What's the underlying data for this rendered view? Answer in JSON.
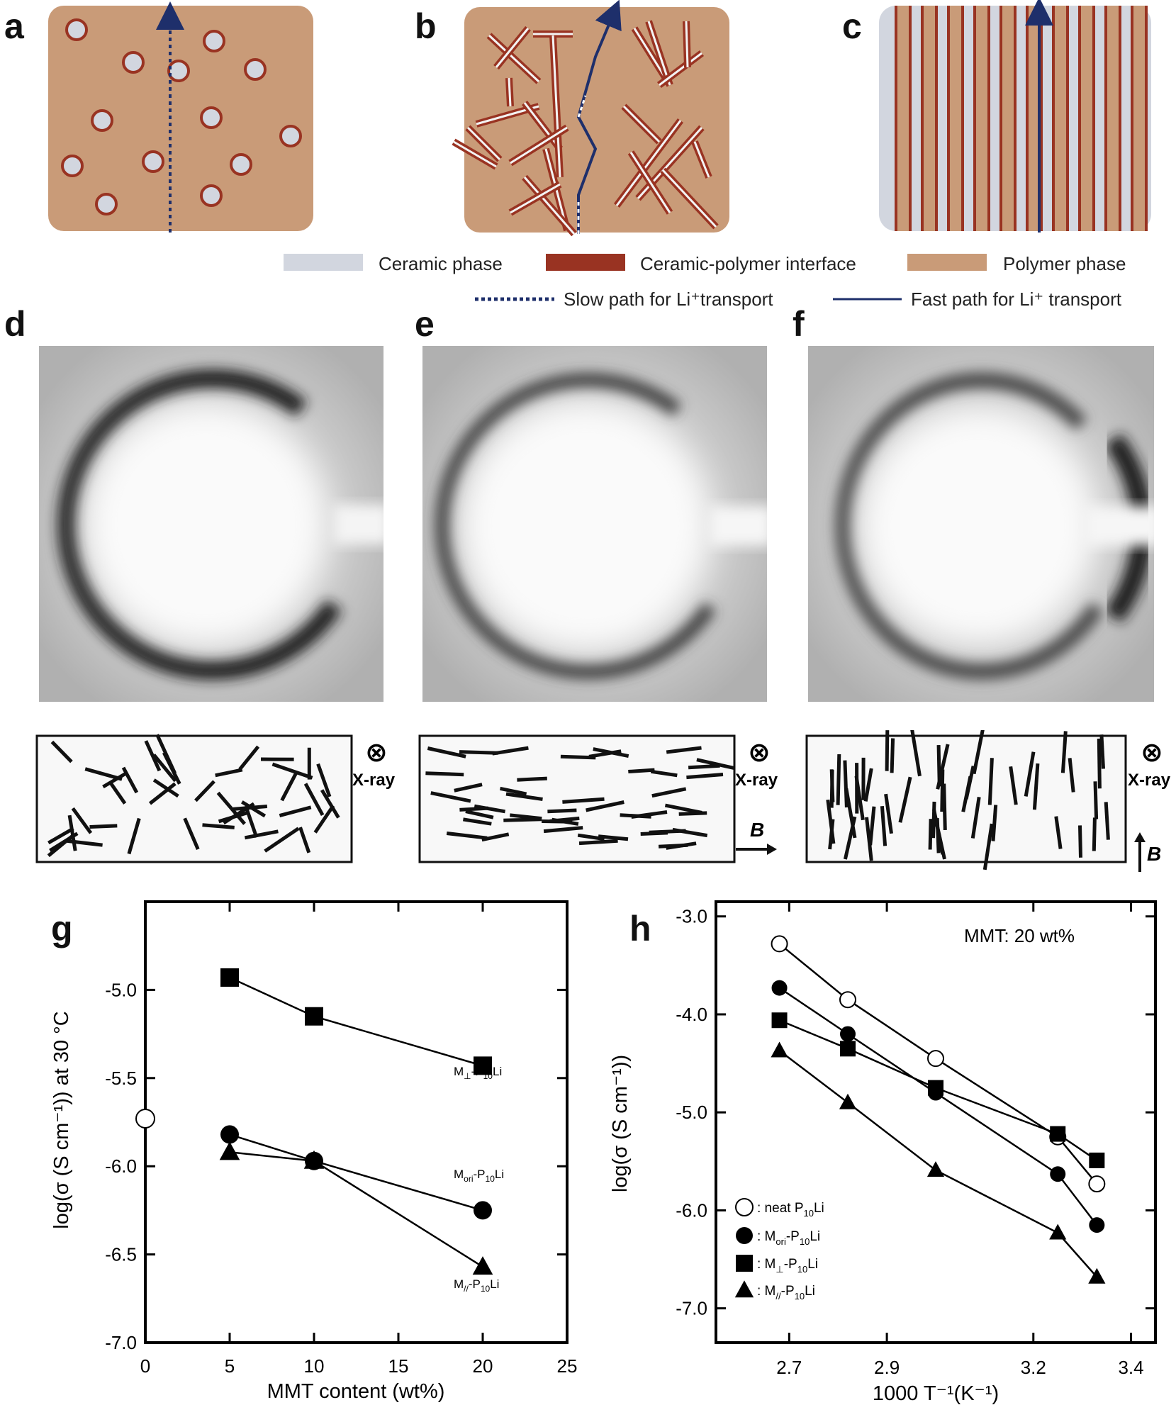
{
  "panels": {
    "a": "a",
    "b": "b",
    "c": "c",
    "d": "d",
    "e": "e",
    "f": "f",
    "g": "g",
    "h": "h"
  },
  "colors": {
    "ceramic": "#d2d6df",
    "interface": "#993322",
    "polymer": "#c99b78",
    "path": "#1e2f6b"
  },
  "legend": {
    "ceramic": "Ceramic phase",
    "interface": "Ceramic-polymer interface",
    "polymer": "Polymer phase",
    "slow_path": "Slow path for Li⁺transport",
    "fast_path": "Fast path for Li⁺ transport"
  },
  "schematics": {
    "xray_label": "X-ray",
    "xray_symbol": "⊗",
    "field_label": "B"
  },
  "chart_data": [
    {
      "type": "line",
      "ylabel": "log(σ (S cm⁻¹)) at 30 °C",
      "xlabel": "MMT content (wt%)",
      "xlim": [
        0,
        25
      ],
      "ylim": [
        -7.0,
        -4.5
      ],
      "x_ticks": [
        0,
        5,
        10,
        15,
        20,
        25
      ],
      "y_ticks": [
        -7.0,
        -6.5,
        -6.0,
        -5.5,
        -5.0
      ],
      "neat_point": {
        "x": 0,
        "y": -5.73,
        "marker": "open-circle"
      },
      "series": [
        {
          "name": "M⊥-P10Li",
          "marker": "square",
          "x": [
            5,
            10,
            20
          ],
          "y": [
            -4.93,
            -5.15,
            -5.43
          ]
        },
        {
          "name": "Mori-P10Li",
          "marker": "circle",
          "x": [
            5,
            10,
            20
          ],
          "y": [
            -5.82,
            -5.97,
            -6.25
          ]
        },
        {
          "name": "M//-P10Li",
          "marker": "triangle",
          "x": [
            5,
            10,
            20
          ],
          "y": [
            -5.92,
            -5.97,
            -6.57
          ]
        }
      ],
      "labels": [
        {
          "main": "M",
          "sub": "⊥",
          "rest": "-P",
          "sub2": "10",
          "tail": "Li"
        },
        {
          "main": "M",
          "sub": "ori",
          "rest": "-P",
          "sub2": "10",
          "tail": "Li"
        },
        {
          "main": "M",
          "sub": "//",
          "rest": "-P",
          "sub2": "10",
          "tail": "Li"
        }
      ]
    },
    {
      "type": "line",
      "ylabel": "log(σ (S cm⁻¹))",
      "xlabel": "1000 T⁻¹(K⁻¹)",
      "xlim": [
        2.55,
        3.45
      ],
      "ylim": [
        -7.35,
        -2.85
      ],
      "x_ticks": [
        2.7,
        2.9,
        3.2,
        3.4
      ],
      "x_tick_labels": [
        "2.7",
        "2.9",
        "3.2",
        "3.4"
      ],
      "y_ticks": [
        -7.0,
        -6.0,
        -5.0,
        -4.0,
        -3.0
      ],
      "annotation": "MMT: 20 wt%",
      "series": [
        {
          "name": "neat P10Li",
          "marker": "open-circle",
          "x": [
            2.68,
            2.82,
            3.0,
            3.25,
            3.33
          ],
          "y": [
            -3.28,
            -3.85,
            -4.45,
            -5.25,
            -5.73
          ]
        },
        {
          "name": "Mori-P10Li",
          "marker": "circle",
          "x": [
            2.68,
            2.82,
            3.0,
            3.25,
            3.33
          ],
          "y": [
            -3.73,
            -4.2,
            -4.8,
            -5.63,
            -6.15
          ]
        },
        {
          "name": "M⊥-P10Li",
          "marker": "square",
          "x": [
            2.68,
            2.82,
            3.0,
            3.25,
            3.33
          ],
          "y": [
            -4.06,
            -4.35,
            -4.75,
            -5.22,
            -5.49
          ]
        },
        {
          "name": "M//-P10Li",
          "marker": "triangle",
          "x": [
            2.68,
            2.82,
            3.0,
            3.25,
            3.33
          ],
          "y": [
            -4.37,
            -4.9,
            -5.59,
            -6.23,
            -6.68
          ]
        }
      ],
      "legend_labels": [
        {
          "prefix": ": neat P",
          "sub": "10",
          "tail": "Li"
        },
        {
          "prefix": ": M",
          "sub": "ori",
          "mid": "-P",
          "sub2": "10",
          "tail": "Li"
        },
        {
          "prefix": ": M",
          "sub": "⊥",
          "mid": "-P",
          "sub2": "10",
          "tail": "Li"
        },
        {
          "prefix": ": M",
          "sub": "//",
          "mid": "-P",
          "sub2": "10",
          "tail": "Li"
        }
      ]
    }
  ]
}
